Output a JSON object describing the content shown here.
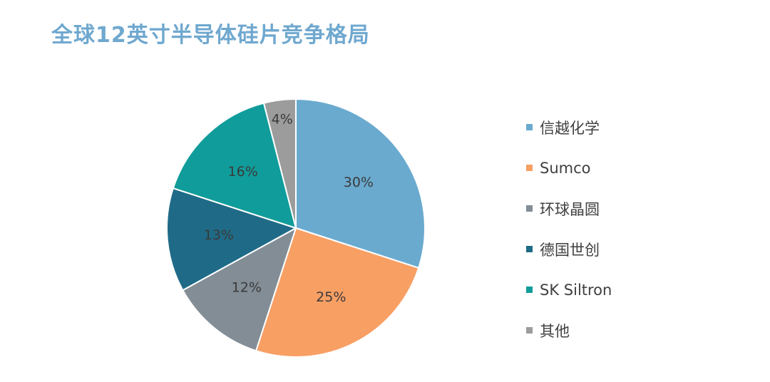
{
  "chart_data": {
    "type": "pie",
    "title": "全球12英寸半导体硅片竞争格局",
    "categories": [
      "信越化学",
      "Sumco",
      "环球晶圆",
      "德国世创",
      "SK Siltron",
      "其他"
    ],
    "values": [
      30,
      25,
      12,
      13,
      16,
      4
    ],
    "labels": [
      "30%",
      "25%",
      "12%",
      "13%",
      "16%",
      "4%"
    ],
    "colors": [
      "#6aaacf",
      "#f89f64",
      "#838d96",
      "#1f6b87",
      "#109c9a",
      "#9c9c9c"
    ],
    "legend_position": "right",
    "start_angle": "12 o'clock, clockwise"
  }
}
